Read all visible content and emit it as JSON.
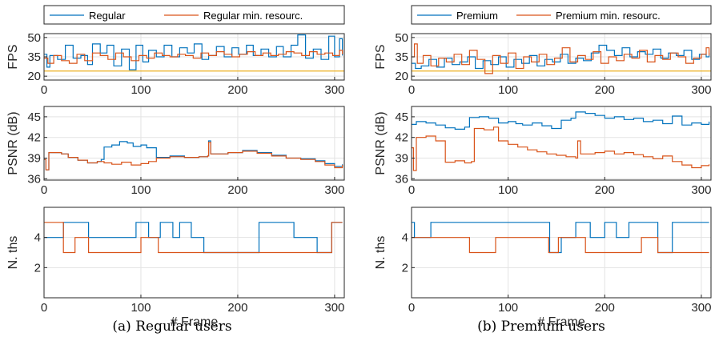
{
  "captions": [
    "(a) Regular users",
    "(b) Premium users"
  ],
  "colors": {
    "blue": "#0072BD",
    "orange": "#D95319",
    "yellow": "#EDB120"
  },
  "chart_data": [
    {
      "type": "line",
      "panel": "a-fps",
      "ylabel": "FPS",
      "xlabel": "",
      "xlim": [
        0,
        310
      ],
      "ylim": [
        17,
        53
      ],
      "xticks": [
        0,
        100,
        200,
        300
      ],
      "yticks": [
        20,
        35,
        50
      ],
      "grid": true,
      "legend": "top",
      "reference_line": 24,
      "series": [
        {
          "name": "Regular",
          "x": [
            0,
            3,
            6,
            14,
            22,
            30,
            38,
            45,
            50,
            58,
            65,
            72,
            80,
            88,
            95,
            102,
            108,
            116,
            124,
            132,
            140,
            148,
            155,
            163,
            170,
            178,
            186,
            194,
            201,
            209,
            216,
            224,
            232,
            240,
            247,
            255,
            262,
            270,
            278,
            286,
            294,
            300,
            305,
            308
          ],
          "y": [
            37,
            27,
            36,
            33,
            44,
            34,
            36,
            29,
            45,
            38,
            44,
            28,
            41,
            25,
            44,
            31,
            40,
            35,
            44,
            35,
            42,
            38,
            45,
            33,
            36,
            43,
            35,
            42,
            37,
            44,
            36,
            41,
            35,
            43,
            35,
            44,
            52,
            34,
            41,
            33,
            51,
            35,
            49,
            36
          ]
        },
        {
          "name": "Regular min. resourc.",
          "x": [
            0,
            4,
            10,
            18,
            26,
            34,
            42,
            50,
            58,
            66,
            74,
            82,
            90,
            98,
            106,
            114,
            122,
            130,
            138,
            146,
            154,
            162,
            170,
            178,
            186,
            194,
            202,
            210,
            218,
            226,
            234,
            242,
            250,
            258,
            266,
            274,
            282,
            290,
            298,
            305,
            308
          ],
          "y": [
            34,
            30,
            36,
            32,
            30,
            37,
            32,
            38,
            36,
            33,
            38,
            35,
            32,
            36,
            34,
            38,
            36,
            35,
            37,
            36,
            34,
            38,
            36,
            39,
            37,
            35,
            37,
            39,
            36,
            38,
            36,
            37,
            39,
            38,
            36,
            39,
            37,
            38,
            36,
            40,
            37
          ]
        }
      ]
    },
    {
      "type": "line",
      "panel": "a-psnr",
      "ylabel": "PSNR (dB)",
      "xlabel": "",
      "xlim": [
        0,
        310
      ],
      "ylim": [
        35.8,
        46.5
      ],
      "xticks": [
        0,
        100,
        200,
        300
      ],
      "yticks": [
        36,
        39,
        42,
        45
      ],
      "grid": true,
      "series": [
        {
          "name": "Regular",
          "x": [
            0,
            2,
            5,
            18,
            25,
            35,
            45,
            55,
            59,
            62,
            70,
            78,
            86,
            92,
            100,
            106,
            116,
            130,
            145,
            160,
            169,
            170,
            172,
            190,
            205,
            220,
            235,
            250,
            265,
            280,
            290,
            300,
            308
          ],
          "y": [
            38.8,
            37.3,
            39.8,
            39.6,
            39.1,
            38.7,
            38.3,
            38.5,
            38.8,
            40.6,
            40.9,
            41.4,
            41.2,
            40.7,
            40.9,
            40.5,
            39.1,
            39.3,
            39.1,
            39.2,
            39.3,
            41.5,
            39.6,
            39.8,
            40.1,
            39.8,
            39.4,
            39.0,
            38.9,
            38.6,
            38.2,
            37.8,
            38.1
          ]
        },
        {
          "name": "Regular min. resourc.",
          "x": [
            0,
            2,
            5,
            18,
            25,
            35,
            45,
            55,
            62,
            70,
            80,
            90,
            100,
            108,
            116,
            130,
            145,
            160,
            169,
            170,
            172,
            190,
            205,
            220,
            235,
            250,
            265,
            280,
            290,
            300,
            308
          ],
          "y": [
            38.8,
            37.3,
            39.8,
            39.6,
            39.1,
            38.7,
            38.3,
            38.5,
            38.3,
            38.1,
            38.4,
            38.0,
            38.2,
            38.5,
            39.0,
            39.2,
            39.1,
            39.2,
            39.3,
            41.3,
            39.6,
            39.8,
            40.0,
            39.7,
            39.3,
            39.0,
            38.8,
            38.5,
            38.0,
            37.6,
            38.0
          ]
        }
      ]
    },
    {
      "type": "line",
      "panel": "a-ths",
      "ylabel": "N. ths",
      "xlabel": "# Frame",
      "xlim": [
        0,
        310
      ],
      "ylim": [
        0,
        6
      ],
      "xticks": [
        0,
        100,
        200,
        300
      ],
      "yticks": [
        2,
        4
      ],
      "grid": true,
      "series": [
        {
          "name": "Regular",
          "x": [
            0,
            20,
            46,
            65,
            95,
            108,
            120,
            133,
            140,
            152,
            165,
            184,
            222,
            258,
            282,
            297,
            300,
            308
          ],
          "y": [
            4,
            5,
            4,
            4,
            5,
            4,
            5,
            4,
            5,
            4,
            3,
            3,
            5,
            4,
            3,
            5,
            5,
            5
          ]
        },
        {
          "name": "Regular min. resourc.",
          "x": [
            0,
            20,
            32,
            46,
            100,
            118,
            184,
            222,
            282,
            297,
            300,
            308
          ],
          "y": [
            5,
            3,
            4,
            3,
            4,
            3,
            3,
            3,
            3,
            5,
            5,
            5
          ]
        }
      ]
    },
    {
      "type": "line",
      "panel": "b-fps",
      "ylabel": "FPS",
      "xlabel": "",
      "xlim": [
        0,
        310
      ],
      "ylim": [
        17,
        53
      ],
      "xticks": [
        0,
        100,
        200,
        300
      ],
      "yticks": [
        20,
        35,
        50
      ],
      "grid": true,
      "legend": "top",
      "reference_line": 24,
      "series": [
        {
          "name": "Premium",
          "x": [
            0,
            4,
            10,
            18,
            26,
            34,
            42,
            50,
            58,
            66,
            74,
            82,
            90,
            98,
            106,
            114,
            122,
            130,
            138,
            146,
            154,
            162,
            170,
            178,
            186,
            194,
            202,
            210,
            218,
            226,
            234,
            242,
            250,
            258,
            266,
            274,
            282,
            290,
            298,
            305,
            308
          ],
          "y": [
            30,
            26,
            28,
            33,
            27,
            34,
            29,
            31,
            35,
            26,
            32,
            29,
            35,
            27,
            33,
            30,
            36,
            28,
            33,
            31,
            37,
            30,
            34,
            32,
            38,
            44,
            40,
            36,
            42,
            35,
            39,
            37,
            41,
            34,
            38,
            36,
            40,
            33,
            37,
            35,
            38
          ]
        },
        {
          "name": "Premium min. resourc.",
          "x": [
            0,
            3,
            6,
            12,
            20,
            28,
            36,
            44,
            52,
            60,
            68,
            76,
            84,
            92,
            100,
            108,
            116,
            124,
            132,
            140,
            148,
            156,
            164,
            172,
            180,
            188,
            196,
            204,
            212,
            220,
            228,
            236,
            244,
            252,
            260,
            268,
            276,
            284,
            292,
            300,
            305,
            308
          ],
          "y": [
            35,
            45,
            30,
            36,
            28,
            34,
            31,
            37,
            29,
            40,
            33,
            22,
            36,
            30,
            38,
            26,
            35,
            31,
            37,
            29,
            34,
            42,
            31,
            36,
            33,
            39,
            30,
            35,
            32,
            37,
            34,
            40,
            31,
            36,
            33,
            38,
            35,
            30,
            34,
            37,
            42,
            36
          ]
        }
      ]
    },
    {
      "type": "line",
      "panel": "b-psnr",
      "ylabel": "PSNR (dB)",
      "xlabel": "",
      "xlim": [
        0,
        310
      ],
      "ylim": [
        35.8,
        46.5
      ],
      "xticks": [
        0,
        100,
        200,
        300
      ],
      "yticks": [
        36,
        39,
        42,
        45
      ],
      "grid": true,
      "series": [
        {
          "name": "Premium",
          "x": [
            0,
            5,
            15,
            25,
            35,
            45,
            55,
            60,
            70,
            80,
            90,
            100,
            108,
            115,
            125,
            135,
            145,
            155,
            165,
            170,
            180,
            190,
            200,
            210,
            220,
            230,
            240,
            250,
            260,
            270,
            280,
            290,
            300,
            308
          ],
          "y": [
            43.9,
            44.3,
            44.1,
            43.8,
            43.4,
            43.2,
            43.5,
            44.9,
            45.0,
            44.8,
            44.1,
            44.3,
            44.0,
            43.8,
            44.1,
            43.7,
            43.3,
            44.5,
            44.8,
            45.7,
            45.5,
            45.2,
            44.8,
            45.0,
            44.6,
            44.8,
            44.3,
            44.5,
            44.0,
            45.1,
            43.8,
            44.1,
            43.9,
            44.3
          ]
        },
        {
          "name": "Premium min. resourc.",
          "x": [
            0,
            2,
            5,
            15,
            25,
            35,
            45,
            55,
            62,
            65,
            75,
            85,
            90,
            100,
            110,
            120,
            130,
            140,
            150,
            160,
            170,
            172,
            175,
            190,
            200,
            210,
            220,
            230,
            240,
            250,
            260,
            270,
            280,
            290,
            300,
            308
          ],
          "y": [
            40.5,
            37.2,
            42.0,
            42.2,
            41.5,
            38.4,
            38.6,
            38.3,
            38.5,
            43.3,
            43.1,
            43.5,
            41.5,
            41.0,
            40.6,
            40.2,
            39.9,
            39.6,
            39.4,
            39.2,
            39.0,
            41.5,
            39.6,
            39.8,
            40.0,
            39.6,
            39.8,
            39.5,
            39.2,
            38.9,
            39.3,
            38.5,
            38.0,
            37.6,
            37.9,
            38.1
          ]
        }
      ]
    },
    {
      "type": "line",
      "panel": "b-ths",
      "ylabel": "N. ths",
      "xlabel": "# Frame",
      "xlim": [
        0,
        310
      ],
      "ylim": [
        0,
        6
      ],
      "xticks": [
        0,
        100,
        200,
        300
      ],
      "yticks": [
        2,
        4
      ],
      "grid": true,
      "series": [
        {
          "name": "Premium",
          "x": [
            0,
            3,
            20,
            143,
            155,
            170,
            185,
            200,
            212,
            225,
            255,
            270,
            308
          ],
          "y": [
            5,
            4,
            5,
            3,
            4,
            5,
            4,
            5,
            4,
            5,
            3,
            5,
            5
          ]
        },
        {
          "name": "Premium min. resourc.",
          "x": [
            0,
            3,
            25,
            60,
            87,
            142,
            152,
            180,
            200,
            238,
            255,
            308
          ],
          "y": [
            4,
            4,
            4,
            3,
            4,
            3,
            4,
            3,
            3,
            4,
            3,
            3
          ]
        }
      ]
    }
  ]
}
